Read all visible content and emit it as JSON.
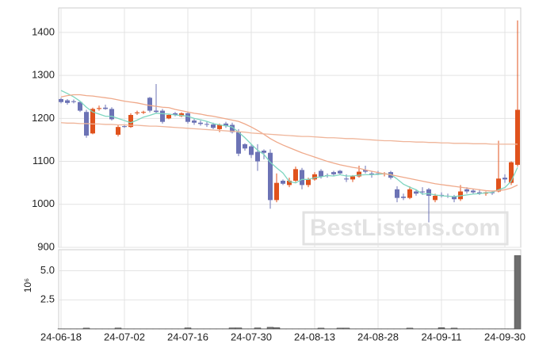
{
  "chart_data": {
    "type": "candlestick",
    "up_color": "#e0521c",
    "down_color": "#6c73b5",
    "grid": true,
    "watermark": "BestListens.com",
    "categories": [
      "24-06-18",
      null,
      null,
      null,
      null,
      null,
      null,
      null,
      null,
      null,
      "24-07-02",
      null,
      null,
      null,
      null,
      null,
      null,
      null,
      null,
      null,
      "24-07-16",
      null,
      null,
      null,
      null,
      null,
      null,
      null,
      null,
      null,
      "24-07-30",
      null,
      null,
      null,
      null,
      null,
      null,
      null,
      null,
      null,
      "24-08-13",
      null,
      null,
      null,
      null,
      null,
      null,
      null,
      null,
      null,
      "24-08-28",
      null,
      null,
      null,
      null,
      null,
      null,
      null,
      null,
      null,
      "24-09-11",
      null,
      null,
      null,
      null,
      null,
      null,
      null,
      null,
      null,
      "24-09-30",
      null,
      null
    ],
    "open": [
      1245,
      1242,
      1240,
      1238,
      1215,
      1165,
      1222,
      1225,
      1222,
      1162,
      1182,
      1180,
      1212,
      1214,
      1248,
      1218,
      1218,
      1200,
      1212,
      1205,
      1212,
      1195,
      1190,
      1187,
      1186,
      1175,
      1188,
      1185,
      1168,
      1140,
      1135,
      1122,
      1125,
      1120,
      1010,
      1055,
      1045,
      1055,
      1080,
      1045,
      1058,
      1078,
      1068,
      1075,
      1078,
      1060,
      1058,
      1065,
      1080,
      1072,
      1072,
      1070,
      1075,
      1035,
      1018,
      1015,
      1030,
      1030,
      1035,
      1010,
      1022,
      1020,
      1018,
      1012,
      1035,
      1032,
      1028,
      1025,
      1028,
      1030,
      1062,
      1050,
      1092
    ],
    "high": [
      1248,
      1245,
      1244,
      1240,
      1220,
      1225,
      1230,
      1232,
      1226,
      1185,
      1186,
      1212,
      1218,
      1218,
      1250,
      1280,
      1222,
      1210,
      1215,
      1214,
      1215,
      1200,
      1195,
      1192,
      1190,
      1188,
      1192,
      1190,
      1175,
      1142,
      1140,
      1140,
      1128,
      1128,
      1072,
      1058,
      1062,
      1088,
      1085,
      1062,
      1075,
      1082,
      1072,
      1078,
      1080,
      1070,
      1068,
      1090,
      1090,
      1078,
      1078,
      1075,
      1078,
      1042,
      1025,
      1042,
      1035,
      1040,
      1038,
      1025,
      1028,
      1025,
      1022,
      1045,
      1040,
      1036,
      1035,
      1030,
      1032,
      1148,
      1070,
      1100,
      1428
    ],
    "low": [
      1235,
      1232,
      1235,
      1215,
      1155,
      1163,
      1218,
      1220,
      1195,
      1158,
      1178,
      1178,
      1208,
      1210,
      1214,
      1212,
      1188,
      1198,
      1205,
      1203,
      1188,
      1185,
      1183,
      1180,
      1175,
      1168,
      1178,
      1165,
      1112,
      1125,
      1108,
      1078,
      1105,
      990,
      1005,
      1045,
      1040,
      1052,
      1035,
      1040,
      1055,
      1060,
      1062,
      1065,
      1068,
      1052,
      1052,
      1062,
      1072,
      1062,
      1068,
      1065,
      1058,
      1005,
      1010,
      1012,
      1020,
      1022,
      958,
      1005,
      1016,
      1015,
      1005,
      1008,
      1025,
      1025,
      1022,
      1020,
      1022,
      1028,
      1050,
      1045,
      1088
    ],
    "close": [
      1238,
      1236,
      1238,
      1218,
      1160,
      1222,
      1224,
      1222,
      1198,
      1180,
      1180,
      1208,
      1214,
      1215,
      1218,
      1215,
      1192,
      1208,
      1208,
      1212,
      1192,
      1190,
      1187,
      1186,
      1178,
      1185,
      1182,
      1168,
      1118,
      1130,
      1115,
      1100,
      1120,
      1010,
      1050,
      1048,
      1055,
      1082,
      1045,
      1058,
      1070,
      1065,
      1066,
      1070,
      1072,
      1058,
      1065,
      1076,
      1076,
      1070,
      1070,
      1072,
      1062,
      1015,
      1015,
      1035,
      1025,
      1028,
      1020,
      1020,
      1020,
      1018,
      1012,
      1030,
      1030,
      1028,
      1025,
      1028,
      1026,
      1060,
      1058,
      1098,
      1220
    ],
    "lines": [
      {
        "color": "#7fd6c0",
        "values": [
          1265,
          1258,
          1250,
          1240,
          1226,
          1215,
          1210,
          1205,
          1205,
          1200,
          1195,
          1190,
          1196,
          1203,
          1207,
          1212,
          1211,
          1210,
          1208,
          1207,
          1205,
          1200,
          1197,
          1193,
          1188,
          1185,
          1183,
          1180,
          1168,
          1155,
          1140,
          1126,
          1116,
          1098,
          1085,
          1073,
          1053,
          1050,
          1058,
          1058,
          1062,
          1064,
          1067,
          1066,
          1069,
          1066,
          1066,
          1068,
          1069,
          1069,
          1070,
          1071,
          1070,
          1059,
          1047,
          1040,
          1034,
          1024,
          1025,
          1022,
          1020,
          1019,
          1018,
          1020,
          1022,
          1024,
          1025,
          1027,
          1028,
          1034,
          1039,
          1054,
          1086
        ]
      },
      {
        "color": "#efa98a",
        "values": [
          1250,
          1253,
          1255,
          1255,
          1253,
          1252,
          1250,
          1248,
          1246,
          1243,
          1240,
          1238,
          1236,
          1233,
          1230,
          1228,
          1226,
          1225,
          1221,
          1218,
          1215,
          1212,
          1210,
          1207,
          1205,
          1202,
          1199,
          1196,
          1193,
          1187,
          1180,
          1172,
          1163,
          1153,
          1145,
          1138,
          1132,
          1126,
          1120,
          1115,
          1110,
          1105,
          1100,
          1096,
          1092,
          1089,
          1086,
          1084,
          1080,
          1077,
          1074,
          1071,
          1069,
          1066,
          1063,
          1060,
          1057,
          1054,
          1051,
          1048,
          1046,
          1044,
          1042,
          1040,
          1038,
          1036,
          1034,
          1032,
          1031,
          1032,
          1034,
          1038,
          1045
        ]
      },
      {
        "color": "#efb59a",
        "values": [
          1190,
          1189,
          1189,
          1188,
          1188,
          1187,
          1187,
          1186,
          1186,
          1185,
          1185,
          1184,
          1184,
          1183,
          1182,
          1182,
          1181,
          1180,
          1179,
          1178,
          1177,
          1176,
          1175,
          1174,
          1173,
          1172,
          1171,
          1170,
          1169,
          1168,
          1166,
          1165,
          1164,
          1163,
          1162,
          1161,
          1160,
          1159,
          1158,
          1158,
          1157,
          1156,
          1155,
          1155,
          1154,
          1153,
          1153,
          1152,
          1151,
          1150,
          1149,
          1148,
          1148,
          1147,
          1146,
          1146,
          1145,
          1145,
          1144,
          1144,
          1143,
          1143,
          1142,
          1142,
          1142,
          1141,
          1141,
          1141,
          1140,
          1140,
          1140,
          1140,
          1140
        ]
      }
    ],
    "ylim": [
      900,
      1457
    ],
    "yticks": [
      900,
      1000,
      1100,
      1200,
      1300,
      1400
    ],
    "volume": {
      "axis_label": "10⁶",
      "color": "#6e6e6e",
      "ylim": [
        0,
        6.8
      ],
      "yticks": [
        2.5,
        {
          "value": 5,
          "label": "5.0"
        }
      ],
      "values": [
        0.02,
        0.02,
        0.02,
        0.02,
        0.08,
        0.02,
        0.02,
        0.02,
        0.02,
        0.09,
        0.02,
        0.02,
        0.02,
        0.02,
        0.02,
        0.02,
        0.02,
        0.02,
        0.02,
        0.02,
        0.1,
        0.02,
        0.02,
        0.02,
        0.02,
        0.02,
        0.02,
        0.1,
        0.1,
        0.02,
        0.02,
        0.1,
        0.02,
        0.15,
        0.12,
        0.02,
        0.02,
        0.02,
        0.02,
        0.02,
        0.02,
        0.08,
        0.02,
        0.02,
        0.08,
        0.08,
        0.02,
        0.02,
        0.02,
        0.02,
        0.02,
        0.02,
        0.02,
        0.02,
        0.02,
        0.08,
        0.02,
        0.02,
        0.02,
        0.02,
        0.12,
        0.02,
        0.08,
        0.02,
        0.02,
        0.02,
        0.02,
        0.02,
        0.02,
        0.02,
        0.02,
        0.02,
        6.3
      ]
    }
  }
}
